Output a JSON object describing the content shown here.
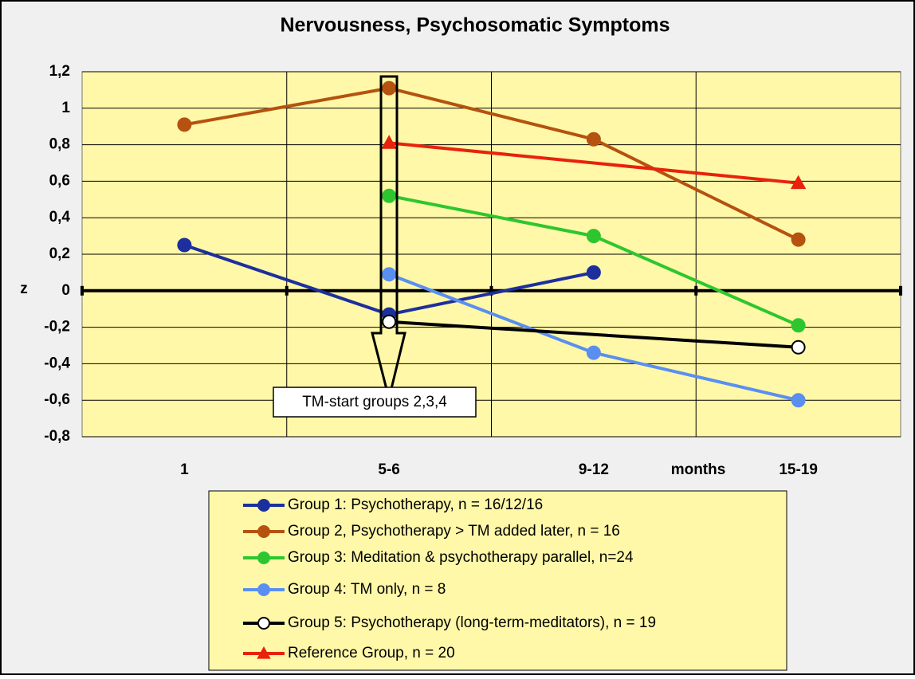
{
  "chart_data": {
    "type": "line",
    "title": "Nervousness, Psychosomatic Symptoms",
    "y_label": "z",
    "x_label": "months",
    "categories": [
      "1",
      "5-6",
      "9-12",
      "15-19"
    ],
    "ylim": [
      -0.8,
      1.2
    ],
    "yticks": [
      {
        "value": 1.2,
        "label": "1,2"
      },
      1,
      {
        "value": 0.8,
        "label": "0,8"
      },
      {
        "value": 0.6,
        "label": "0,6"
      },
      {
        "value": 0.4,
        "label": "0,4"
      },
      {
        "value": 0.2,
        "label": "0,2"
      },
      0,
      {
        "value": -0.2,
        "label": "-0,2"
      },
      {
        "value": -0.4,
        "label": "-0,4"
      },
      {
        "value": -0.6,
        "label": "-0,6"
      },
      {
        "value": -0.8,
        "label": "-0,8"
      }
    ],
    "grid": true,
    "span_gaps": true,
    "annotation": "TM-start groups 2,3,4",
    "series": [
      {
        "name": "Group 1: Psychotherapy, n = 16/12/16",
        "color": "#1c2f9c",
        "marker": "circle",
        "values": [
          0.25,
          -0.13,
          0.1,
          null
        ]
      },
      {
        "name": "Group 2, Psychotherapy  > TM added later, n = 16",
        "color": "#b5520f",
        "marker": "circle",
        "values": [
          0.91,
          1.11,
          0.83,
          0.28
        ]
      },
      {
        "name": "Group 3: Meditation & psychotherapy parallel, n=24",
        "color": "#2ec62e",
        "marker": "circle",
        "values": [
          null,
          0.52,
          0.3,
          -0.19
        ]
      },
      {
        "name": "Group 4: TM only, n = 8",
        "color": "#5a8ff0",
        "marker": "circle",
        "values": [
          null,
          0.09,
          -0.34,
          -0.6
        ]
      },
      {
        "name": "Group 5: Psychotherapy (long-term-meditators),  n = 19",
        "color": "#000000",
        "marker": "circle",
        "marker_fill": "#ffffff",
        "values": [
          null,
          -0.17,
          null,
          -0.31
        ]
      },
      {
        "name": "Reference Group, n = 20",
        "color": "#e8220c",
        "marker": "triangle",
        "values": [
          null,
          0.81,
          null,
          0.59
        ]
      }
    ]
  }
}
